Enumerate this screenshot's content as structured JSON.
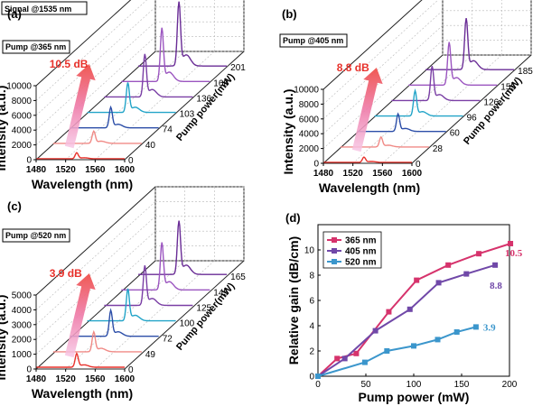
{
  "signal_label": "Signal @1535 nm",
  "series_colors": [
    "#e8322c",
    "#f08a86",
    "#2c4ea8",
    "#22a4c8",
    "#7a3fa5",
    "#9b55c0",
    "#6a2d96",
    "#8a44b8"
  ],
  "chart_data": [
    {
      "id": "a",
      "type": "line",
      "panel_label": "(a)",
      "pump_label": "Pump @365 nm",
      "gain_label": "10.5 dB",
      "xlabel": "Wavelength (nm)",
      "ylabel": "Intensity (a.u.)",
      "zlabel": "Pump power(mW)",
      "x_ticks": [
        "1480",
        "1520",
        "1560",
        "1600"
      ],
      "y_ticks": [
        "0",
        "2000",
        "4000",
        "6000",
        "8000",
        "10000"
      ],
      "pump_powers": [
        "0",
        "40",
        "74",
        "103",
        "136",
        "168",
        "201"
      ],
      "xlim": [
        1480,
        1600
      ],
      "ylim": [
        0,
        10000
      ],
      "peak_wavelength": 1535,
      "peak_heights": [
        800,
        1600,
        2700,
        3900,
        5600,
        7000,
        8400
      ]
    },
    {
      "id": "b",
      "type": "line",
      "panel_label": "(b)",
      "pump_label": "Pump @405 nm",
      "gain_label": "8.8 dB",
      "xlabel": "Wavelength (nm)",
      "ylabel": "Intensity (a.u.)",
      "zlabel": "Pump power(mW)",
      "x_ticks": [
        "1480",
        "1520",
        "1560",
        "1600"
      ],
      "y_ticks": [
        "0",
        "2000",
        "4000",
        "6000",
        "8000",
        "10000"
      ],
      "pump_powers": [
        "0",
        "28",
        "60",
        "96",
        "126",
        "155",
        "185"
      ],
      "xlim": [
        1480,
        1600
      ],
      "ylim": [
        0,
        10000
      ],
      "peak_wavelength": 1535,
      "peak_heights": [
        700,
        1300,
        2300,
        3300,
        4500,
        5600,
        6700
      ]
    },
    {
      "id": "c",
      "type": "line",
      "panel_label": "(c)",
      "pump_label": "Pump @520 nm",
      "gain_label": "3.9 dB",
      "xlabel": "Wavelength (nm)",
      "ylabel": "Intensity (a.u.)",
      "zlabel": "Pump power(mW)",
      "x_ticks": [
        "1480",
        "1520",
        "1560",
        "1600"
      ],
      "y_ticks": [
        "0",
        "1000",
        "2000",
        "3000",
        "4000",
        "5000"
      ],
      "pump_powers": [
        "0",
        "49",
        "72",
        "100",
        "125",
        "145",
        "165"
      ],
      "xlim": [
        1480,
        1600
      ],
      "ylim": [
        0,
        5000
      ],
      "peak_wavelength": 1535,
      "peak_heights": [
        900,
        1300,
        1700,
        2100,
        2600,
        3100,
        3500
      ]
    },
    {
      "id": "d",
      "type": "line",
      "panel_label": "(d)",
      "xlabel": "Pump power (mW)",
      "ylabel": "Relative gain (dB/cm)",
      "xlim": [
        0,
        200
      ],
      "ylim": [
        0,
        12
      ],
      "x_ticks": [
        "0",
        "50",
        "100",
        "150",
        "200"
      ],
      "y_ticks": [
        "0",
        "2",
        "4",
        "6",
        "8",
        "10"
      ],
      "series": [
        {
          "name": "365 nm",
          "color": "#d6336c",
          "marker": "square",
          "x": [
            0,
            20,
            40,
            74,
            103,
            136,
            168,
            201
          ],
          "y": [
            0,
            1.4,
            1.8,
            5.1,
            7.6,
            8.8,
            9.7,
            10.5
          ],
          "end_label": "10.5"
        },
        {
          "name": "405 nm",
          "color": "#7048a8",
          "marker": "square",
          "x": [
            0,
            28,
            60,
            96,
            126,
            155,
            185
          ],
          "y": [
            0,
            1.4,
            3.6,
            5.3,
            7.4,
            8.1,
            8.8
          ],
          "end_label": "8.8"
        },
        {
          "name": "520 nm",
          "color": "#3b96cc",
          "marker": "square",
          "x": [
            0,
            49,
            72,
            100,
            125,
            145,
            165
          ],
          "y": [
            0,
            1.1,
            2.0,
            2.4,
            2.9,
            3.5,
            3.9
          ],
          "end_label": "3.9"
        }
      ]
    }
  ]
}
